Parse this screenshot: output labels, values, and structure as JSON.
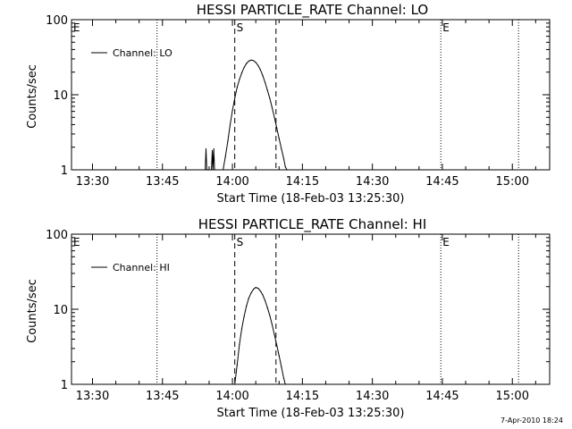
{
  "chart_data": [
    {
      "type": "line",
      "title": "HESSI PARTICLE_RATE Channel: LO",
      "xlabel": "Start Time (18-Feb-03 13:25:30)",
      "ylabel": "Counts/sec",
      "yscale": "log",
      "ylim": [
        1,
        100
      ],
      "xlim": [
        "13:25:30",
        "15:08:00"
      ],
      "xticks": [
        "13:30",
        "13:45",
        "14:00",
        "14:15",
        "14:30",
        "14:45",
        "15:00"
      ],
      "yticks": [
        "1",
        "10",
        "100"
      ],
      "legend": "top-left",
      "series": [
        {
          "name": "Channel: LO",
          "x": [
            "13:54:10",
            "13:54:20",
            "13:54:30",
            "13:54:40",
            "13:54:50",
            "13:55:30",
            "13:55:40",
            "13:55:50",
            "13:56:00",
            "13:56:10",
            "13:58:00",
            "13:58:30",
            "13:59:00",
            "13:59:30",
            "14:00:00",
            "14:00:30",
            "14:01:00",
            "14:01:30",
            "14:02:00",
            "14:02:30",
            "14:03:00",
            "14:03:30",
            "14:04:00",
            "14:04:30",
            "14:05:00",
            "14:05:30",
            "14:06:00",
            "14:06:30",
            "14:07:00",
            "14:07:30",
            "14:08:00",
            "14:08:30",
            "14:09:00",
            "14:09:30",
            "14:10:00",
            "14:10:30",
            "14:11:00",
            "14:11:20",
            "14:11:40"
          ],
          "values": [
            1.0,
            1.9,
            1.0,
            1.0,
            1.0,
            1.0,
            1.8,
            1.0,
            1.9,
            1.0,
            1.0,
            1.5,
            2.4,
            4.0,
            6.2,
            9.0,
            12.5,
            16.0,
            19.5,
            23.0,
            26.0,
            28.0,
            29.0,
            28.5,
            27.0,
            24.5,
            21.5,
            18.0,
            14.5,
            11.5,
            9.0,
            6.8,
            5.0,
            3.6,
            2.6,
            1.9,
            1.4,
            1.1,
            1.0
          ]
        }
      ],
      "markers": [
        {
          "label": "E",
          "time": "13:25:30",
          "style": "dotted"
        },
        {
          "label": "",
          "time": "13:43:50",
          "style": "dotted"
        },
        {
          "label": "S",
          "time": "14:00:30",
          "style": "dashed"
        },
        {
          "label": "",
          "time": "14:09:20",
          "style": "dashed"
        },
        {
          "label": "E",
          "time": "14:44:40",
          "style": "dotted"
        },
        {
          "label": "",
          "time": "15:01:20",
          "style": "dotted"
        }
      ]
    },
    {
      "type": "line",
      "title": "HESSI PARTICLE_RATE Channel: HI",
      "xlabel": "Start Time (18-Feb-03 13:25:30)",
      "ylabel": "Counts/sec",
      "yscale": "log",
      "ylim": [
        1,
        100
      ],
      "xlim": [
        "13:25:30",
        "15:08:00"
      ],
      "xticks": [
        "13:30",
        "13:45",
        "14:00",
        "14:15",
        "14:30",
        "14:45",
        "15:00"
      ],
      "yticks": [
        "1",
        "10",
        "100"
      ],
      "legend": "top-left",
      "series": [
        {
          "name": "Channel: HI",
          "x": [
            "14:00:30",
            "14:01:00",
            "14:01:30",
            "14:02:00",
            "14:02:30",
            "14:03:00",
            "14:03:30",
            "14:04:00",
            "14:04:30",
            "14:05:00",
            "14:05:30",
            "14:06:00",
            "14:06:30",
            "14:07:00",
            "14:07:30",
            "14:08:00",
            "14:08:30",
            "14:09:00",
            "14:09:30",
            "14:10:00",
            "14:10:30",
            "14:11:00",
            "14:11:20"
          ],
          "values": [
            1.0,
            1.8,
            3.4,
            5.5,
            8.0,
            11.0,
            14.0,
            16.5,
            18.5,
            19.5,
            19.0,
            17.5,
            15.5,
            13.0,
            10.5,
            8.3,
            6.3,
            4.6,
            3.3,
            2.4,
            1.7,
            1.2,
            1.0
          ]
        }
      ],
      "markers": [
        {
          "label": "E",
          "time": "13:25:30",
          "style": "dotted"
        },
        {
          "label": "",
          "time": "13:43:50",
          "style": "dotted"
        },
        {
          "label": "S",
          "time": "14:00:30",
          "style": "dashed"
        },
        {
          "label": "",
          "time": "14:09:20",
          "style": "dashed"
        },
        {
          "label": "E",
          "time": "14:44:40",
          "style": "dotted"
        },
        {
          "label": "",
          "time": "15:01:20",
          "style": "dotted"
        }
      ]
    }
  ],
  "timestamp": "7-Apr-2010 18:24"
}
